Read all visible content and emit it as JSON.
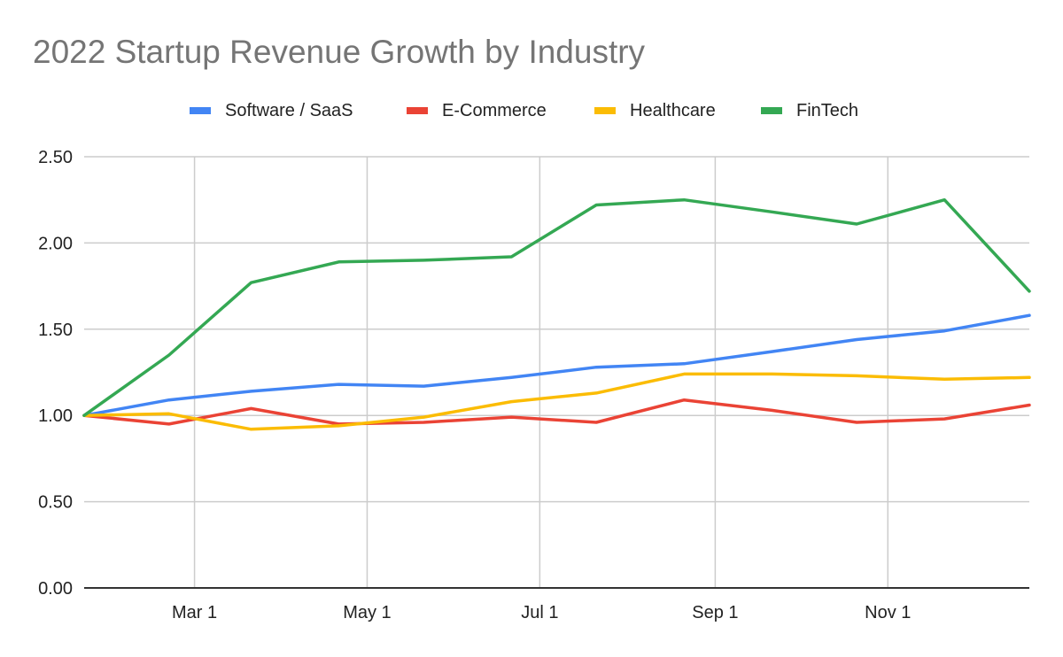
{
  "chart_data": {
    "type": "line",
    "title": "2022 Startup Revenue Growth by Industry",
    "xlabel": "",
    "ylabel": "",
    "x": [
      "2022-01-21",
      "2022-02-20",
      "2022-03-21",
      "2022-04-21",
      "2022-05-21",
      "2022-06-21",
      "2022-07-21",
      "2022-08-21",
      "2022-09-21",
      "2022-10-21",
      "2022-11-21",
      "2022-12-21"
    ],
    "x_day_of_year": [
      20,
      50,
      79,
      110,
      140,
      171,
      201,
      232,
      263,
      293,
      324,
      354
    ],
    "xlim_day_of_year": [
      20,
      354
    ],
    "x_ticks": [
      {
        "label": "Mar 1",
        "day": 59
      },
      {
        "label": "May 1",
        "day": 120
      },
      {
        "label": "Jul 1",
        "day": 181
      },
      {
        "label": "Sep 1",
        "day": 243
      },
      {
        "label": "Nov 1",
        "day": 304
      }
    ],
    "ylim": [
      0,
      2.5
    ],
    "y_ticks": [
      "0.00",
      "0.50",
      "1.00",
      "1.50",
      "2.00",
      "2.50"
    ],
    "y_tick_values": [
      0,
      0.5,
      1.0,
      1.5,
      2.0,
      2.5
    ],
    "grid": true,
    "legend_position": "top-center",
    "series": [
      {
        "name": "Software / SaaS",
        "color": "#4285F4",
        "values": [
          1.0,
          1.09,
          1.14,
          1.18,
          1.17,
          1.22,
          1.28,
          1.3,
          1.37,
          1.44,
          1.49,
          1.58
        ]
      },
      {
        "name": "E-Commerce",
        "color": "#EA4335",
        "values": [
          1.0,
          0.95,
          1.04,
          0.95,
          0.96,
          0.99,
          0.96,
          1.09,
          1.03,
          0.96,
          0.98,
          1.06
        ]
      },
      {
        "name": "Healthcare",
        "color": "#FBBC04",
        "values": [
          1.0,
          1.01,
          0.92,
          0.94,
          0.99,
          1.08,
          1.13,
          1.24,
          1.24,
          1.23,
          1.21,
          1.22
        ]
      },
      {
        "name": "FinTech",
        "color": "#34A853",
        "values": [
          1.0,
          1.35,
          1.77,
          1.89,
          1.9,
          1.92,
          2.22,
          2.25,
          2.18,
          2.11,
          2.25,
          1.72
        ]
      }
    ]
  },
  "colors": {
    "title": "#757575",
    "gridline": "#cccccc",
    "baseline": "#333333",
    "text": "#222222"
  }
}
